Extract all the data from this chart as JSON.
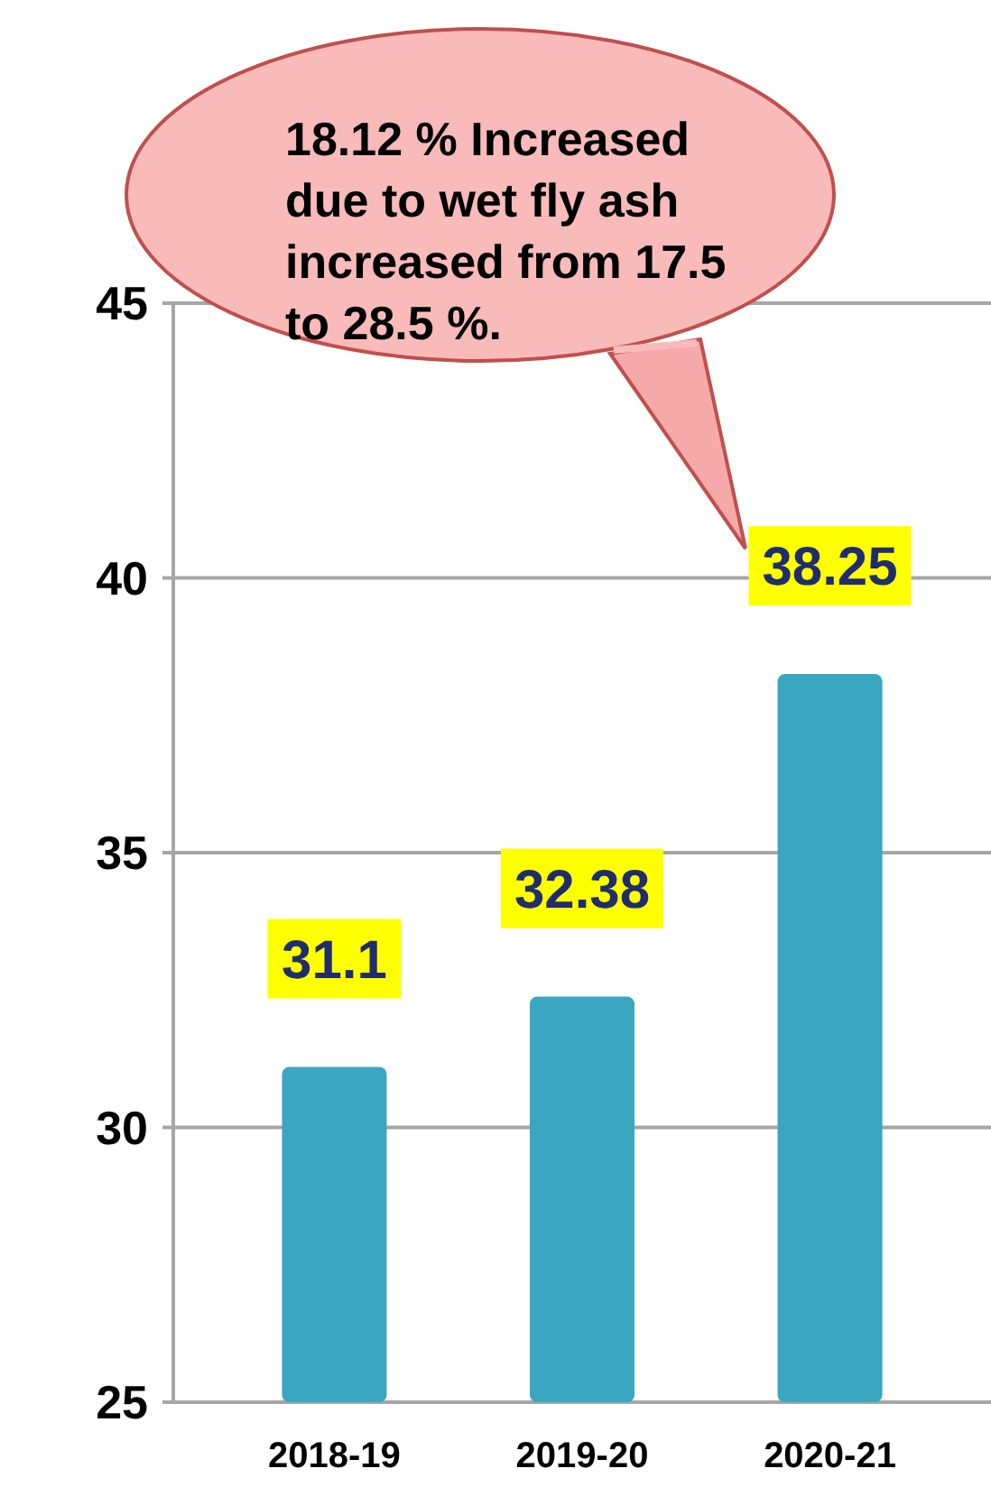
{
  "chart_data": {
    "type": "bar",
    "categories": [
      "2018-19",
      "2019-20",
      "2020-21"
    ],
    "values": [
      31.1,
      32.38,
      38.25
    ],
    "color": "#3aa6c0",
    "ylim": [
      25,
      45
    ],
    "yticks": [
      25,
      30,
      35,
      40,
      45
    ],
    "grid": "y",
    "data_labels": true,
    "annotations": [
      "18.12 % Increased due to wet fly ash increased from 17.5 to 28.5 %."
    ]
  }
}
